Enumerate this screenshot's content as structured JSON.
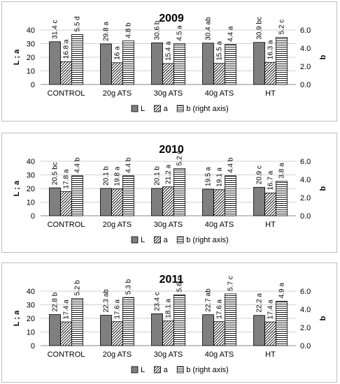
{
  "chart_data": [
    {
      "type": "bar",
      "title": "2009",
      "categories": [
        "CONTROL",
        "20g ATS",
        "30g ATS",
        "40g ATS",
        "HT"
      ],
      "ylabel_left": "L ; a",
      "ylabel_right": "b",
      "ylim_left": [
        0,
        40
      ],
      "ylim_right": [
        0,
        6.0
      ],
      "yticks_left": [
        "0",
        "10",
        "20",
        "30",
        "40"
      ],
      "yticks_right": [
        "0.0",
        "2.0",
        "4.0",
        "6.0"
      ],
      "grid": true,
      "legend_position": "bottom",
      "series": [
        {
          "name": "L",
          "axis": "left",
          "pattern": "solid",
          "values": [
            31.4,
            29.8,
            30.6,
            30.4,
            30.9
          ],
          "labels": [
            "31.4 c",
            "29.8 a",
            "30.6 b",
            "30.4 ab",
            "30.9 bc"
          ]
        },
        {
          "name": "a",
          "axis": "left",
          "pattern": "diagonal",
          "values": [
            16.8,
            16.0,
            15.4,
            15.5,
            16.3
          ],
          "labels": [
            "16.8 a",
            "16 a",
            "15.4 a",
            "15.5 a",
            "16.3 a"
          ]
        },
        {
          "name": "b (right axis)",
          "axis": "right",
          "pattern": "horizontal",
          "values": [
            5.5,
            4.8,
            4.5,
            4.4,
            5.2
          ],
          "labels": [
            "5.5 d",
            "4.8 b",
            "4.5 a",
            "4.4 a",
            "5.2 c"
          ]
        }
      ]
    },
    {
      "type": "bar",
      "title": "2010",
      "categories": [
        "CONTROL",
        "20g ATS",
        "30g ATS",
        "40g ATS",
        "HT"
      ],
      "ylabel_left": "L ; a",
      "ylabel_right": "b",
      "ylim_left": [
        0,
        40
      ],
      "ylim_right": [
        0,
        6.0
      ],
      "yticks_left": [
        "0",
        "10",
        "20",
        "30",
        "40"
      ],
      "yticks_right": [
        "0.0",
        "2.0",
        "4.0",
        "6.0"
      ],
      "grid": true,
      "legend_position": "bottom",
      "series": [
        {
          "name": "L",
          "axis": "left",
          "pattern": "solid",
          "values": [
            20.5,
            20.1,
            20.1,
            19.5,
            20.9
          ],
          "labels": [
            "20.5 bc",
            "20.1 b",
            "20.1 b",
            "19.5 a",
            "20.9 c"
          ]
        },
        {
          "name": "a",
          "axis": "left",
          "pattern": "diagonal",
          "values": [
            17.8,
            19.8,
            21.2,
            19.1,
            16.7
          ],
          "labels": [
            "17.8 a",
            "19.8 a",
            "21.2 a",
            "19.1 a",
            "16.7 a"
          ]
        },
        {
          "name": "b (right axis)",
          "axis": "right",
          "pattern": "horizontal",
          "values": [
            4.4,
            4.4,
            5.2,
            4.4,
            3.8
          ],
          "labels": [
            "4.4 b",
            "4.4 b",
            "5.2 c",
            "4.4 b",
            "3.8 a"
          ]
        }
      ]
    },
    {
      "type": "bar",
      "title": "2011",
      "categories": [
        "CONTROL",
        "20g ATS",
        "30g ATS",
        "40g ATS",
        "HT"
      ],
      "ylabel_left": "L ; a",
      "ylabel_right": "b",
      "ylim_left": [
        0,
        40
      ],
      "ylim_right": [
        0,
        6.0
      ],
      "yticks_left": [
        "0",
        "10",
        "20",
        "30",
        "40"
      ],
      "yticks_right": [
        "0.0",
        "2.0",
        "4.0",
        "6.0"
      ],
      "grid": true,
      "legend_position": "bottom",
      "series": [
        {
          "name": "L",
          "axis": "left",
          "pattern": "solid",
          "values": [
            22.8,
            22.3,
            23.4,
            22.7,
            22.2
          ],
          "labels": [
            "22.8 b",
            "22.3 ab",
            "23.4 c",
            "22.7 ab",
            "22.2 a"
          ]
        },
        {
          "name": "a",
          "axis": "left",
          "pattern": "diagonal",
          "values": [
            17.4,
            17.6,
            18.1,
            17.6,
            17.4
          ],
          "labels": [
            "17.4 a",
            "17.6 a",
            "18.1 a",
            "17.6 a",
            "17.4 a"
          ]
        },
        {
          "name": "b (right axis)",
          "axis": "right",
          "pattern": "horizontal",
          "values": [
            5.2,
            5.3,
            5.6,
            5.7,
            4.9
          ],
          "labels": [
            "5.2 b",
            "5.3 b",
            "5.6 c",
            "5.7 c",
            "4.9 a"
          ]
        }
      ]
    }
  ]
}
